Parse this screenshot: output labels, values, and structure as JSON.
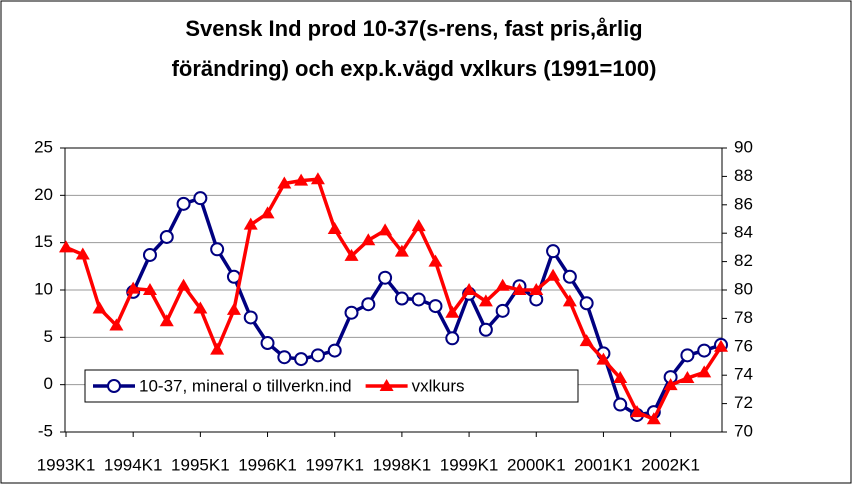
{
  "chart_data": {
    "type": "line",
    "title": [
      "Svensk Ind prod 10-37(s-rens, fast pris,årlig",
      "förändring) och  exp.k.vägd vxlkurs (1991=100)"
    ],
    "categories": [
      "1993K1",
      null,
      null,
      null,
      "1994K1",
      null,
      null,
      null,
      "1995K1",
      null,
      null,
      null,
      "1996K1",
      null,
      null,
      null,
      "1997K1",
      null,
      null,
      null,
      "1998K1",
      null,
      null,
      null,
      "1999K1",
      null,
      null,
      null,
      "2000K1",
      null,
      null,
      null,
      "2001K1",
      null,
      null,
      null,
      "2002K1",
      null,
      null,
      null
    ],
    "series": [
      {
        "name": "10-37, mineral o tillverkn.ind",
        "color": "#000080",
        "marker": "circle",
        "axis": "y",
        "values": [
          null,
          null,
          null,
          null,
          9.8,
          13.7,
          15.6,
          19.1,
          19.7,
          14.3,
          11.4,
          7.1,
          4.4,
          2.9,
          2.7,
          3.1,
          3.6,
          7.6,
          8.5,
          11.3,
          9.1,
          9.0,
          8.3,
          4.9,
          9.6,
          5.8,
          7.8,
          10.4,
          9.0,
          14.1,
          11.4,
          8.6,
          3.3,
          -2.1,
          -3.2,
          -2.9,
          0.8,
          3.1,
          3.6,
          4.2
        ]
      },
      {
        "name": "vxlkurs",
        "color": "#ff0000",
        "marker": "triangle",
        "axis": "y2",
        "values": [
          83.0,
          82.5,
          78.7,
          77.5,
          80.1,
          80.0,
          77.8,
          80.3,
          78.7,
          75.8,
          78.6,
          84.6,
          85.4,
          87.5,
          87.7,
          87.8,
          84.3,
          82.4,
          83.5,
          84.2,
          82.7,
          84.5,
          82.0,
          78.4,
          80.0,
          79.2,
          80.3,
          80.0,
          80.0,
          81.0,
          79.2,
          76.4,
          75.1,
          73.8,
          71.4,
          70.9,
          73.3,
          73.8,
          74.2,
          76.0
        ]
      }
    ],
    "ylim": [
      -5,
      25
    ],
    "yticks": [
      -5,
      0,
      5,
      10,
      15,
      20,
      25
    ],
    "y2lim": [
      70,
      90
    ],
    "y2ticks": [
      70,
      72,
      74,
      76,
      78,
      80,
      82,
      84,
      86,
      88,
      90
    ],
    "grid": true,
    "legend": "bottom-left"
  }
}
